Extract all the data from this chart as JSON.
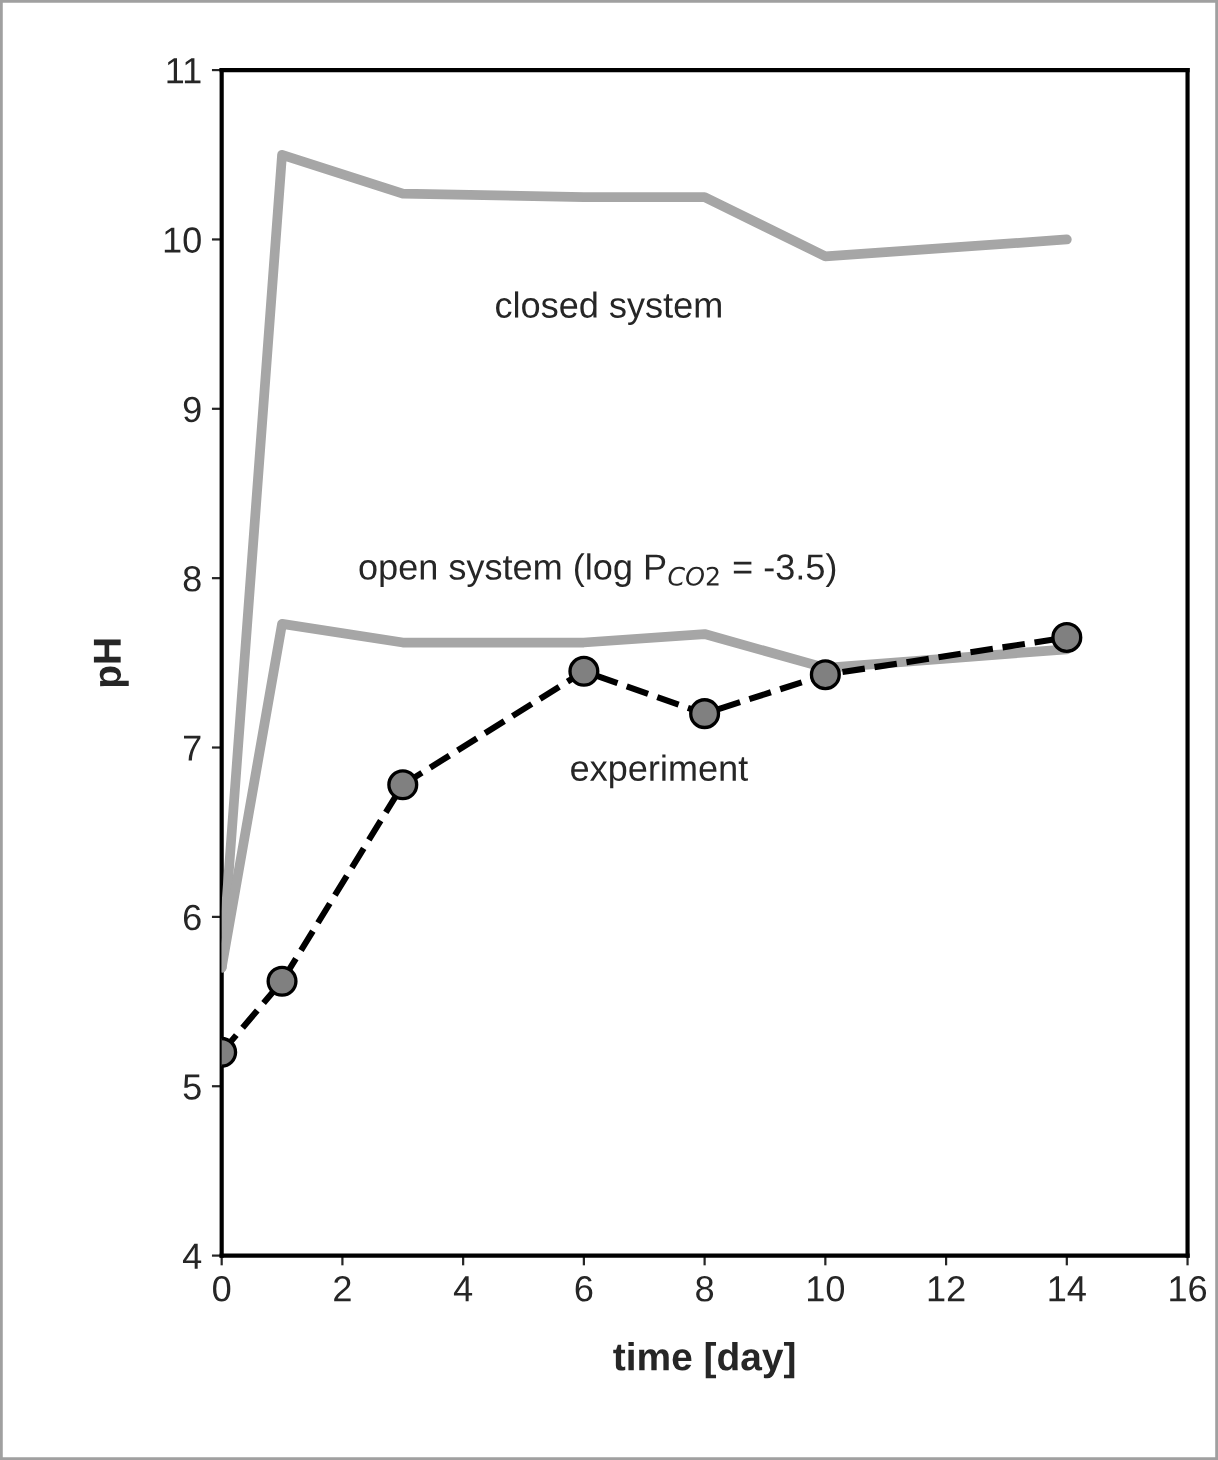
{
  "chart_data": {
    "type": "line",
    "xlabel": "time [day]",
    "ylabel": "pH",
    "x": [
      0,
      1,
      3,
      6,
      8,
      10,
      14
    ],
    "series": [
      {
        "name": "closed system",
        "color": "#a6a6a6",
        "values": [
          5.7,
          10.5,
          10.27,
          10.25,
          10.25,
          9.9,
          10.0
        ],
        "marker": "none",
        "line_style": "solid"
      },
      {
        "name": "open system (log P$_{CO2}$ = -3.5)",
        "color": "#a6a6a6",
        "values": [
          5.7,
          7.73,
          7.62,
          7.62,
          7.67,
          7.47,
          7.58
        ],
        "marker": "none",
        "line_style": "solid"
      },
      {
        "name": "experiment",
        "color": "#000000",
        "values": [
          5.2,
          5.62,
          6.78,
          7.45,
          7.2,
          7.43,
          7.65
        ],
        "marker": "circle",
        "line_style": "dashed"
      }
    ],
    "xlim": [
      0,
      16
    ],
    "xticks": [
      0,
      2,
      4,
      6,
      8,
      10,
      12,
      14,
      16
    ],
    "ylim": [
      4,
      11
    ],
    "yticks": [
      4,
      5,
      6,
      7,
      8,
      9,
      10,
      11
    ],
    "grid": false,
    "legend": false
  }
}
